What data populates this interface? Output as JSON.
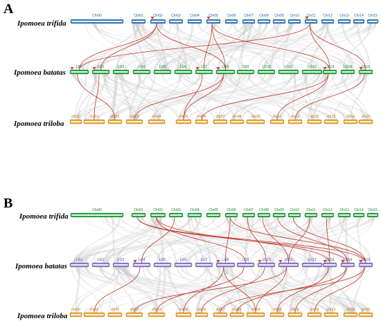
{
  "panels": [
    {
      "letter": "A",
      "tracks": [
        {
          "species": "Ipomoea trifida",
          "color": "#2f7fc1",
          "label_color": "#1f5fa0",
          "chromosomes": [
            "Chr00",
            "Chr01",
            "Chr02",
            "Chr03",
            "Chr04",
            "Chr05",
            "Chr06",
            "Chr07",
            "Chr08",
            "Chr09",
            "Chr10",
            "Chr11",
            "Chr12",
            "Chr13",
            "Chr14",
            "Chr15"
          ],
          "gene_markers": [
            "Chr02",
            "Chr05",
            "Chr11"
          ]
        },
        {
          "species": "Ipomoea batatas",
          "color": "#1ea83c",
          "label_color": "#127a28",
          "chromosomes": [
            "LG1",
            "LG2",
            "LG3",
            "LG4",
            "LG5",
            "LG6",
            "LG7",
            "LG8",
            "LG9",
            "LG10",
            "LG11",
            "LG12",
            "LG13",
            "LG14",
            "LG15"
          ],
          "gene_markers": [
            "LG1",
            "LG2",
            "LG7",
            "LG8",
            "LG13",
            "LG15"
          ]
        },
        {
          "species": "Ipomoea triloba",
          "color": "#f5a623",
          "label_color": "#b86e00",
          "chromosomes": [
            "chr00",
            "chr01",
            "chr02",
            "chr03",
            "chr04",
            "chr05",
            "chr06",
            "chr07",
            "chr08",
            "chr09",
            "chr10",
            "chr11",
            "chr12",
            "chr13",
            "chr14",
            "chr15"
          ],
          "gene_markers": []
        }
      ]
    },
    {
      "letter": "B",
      "tracks": [
        {
          "species": "Ipomoea trifida",
          "color": "#1ea83c",
          "label_color": "#127a28",
          "chromosomes": [
            "Chr00",
            "Chr01",
            "Chr02",
            "Chr03",
            "Chr04",
            "Chr05",
            "Chr06",
            "Chr07",
            "Chr08",
            "Chr09",
            "Chr10",
            "Chr11",
            "Chr12",
            "Chr13",
            "Chr14",
            "Chr15"
          ],
          "gene_markers": []
        },
        {
          "species": "Ipomoea batatas",
          "color": "#8a7ad6",
          "label_color": "#4a3aa0",
          "chromosomes": [
            "LG1",
            "LG2",
            "LG3",
            "LG4",
            "LG5",
            "LG6",
            "LG7",
            "LG8",
            "LG9",
            "LG10",
            "LG11",
            "LG12",
            "LG13",
            "LG14",
            "LG15"
          ],
          "gene_markers": [
            "LG4",
            "LG8",
            "LG10",
            "LG11",
            "LG13",
            "LG14",
            "LG15"
          ]
        },
        {
          "species": "Ipomoea triloba",
          "color": "#f5a623",
          "label_color": "#b86e00",
          "chromosomes": [
            "chr00",
            "chr01",
            "chr02",
            "chr03",
            "chr04",
            "chr05",
            "chr06",
            "chr07",
            "chr08",
            "chr09",
            "chr10",
            "chr11",
            "chr12",
            "chr13",
            "chr14",
            "chr15"
          ],
          "gene_markers": []
        }
      ]
    }
  ],
  "colors": {
    "collinear_block": "#c8c8c8",
    "syntenic_pair": "#c0392b",
    "marker": "#d9342b"
  }
}
